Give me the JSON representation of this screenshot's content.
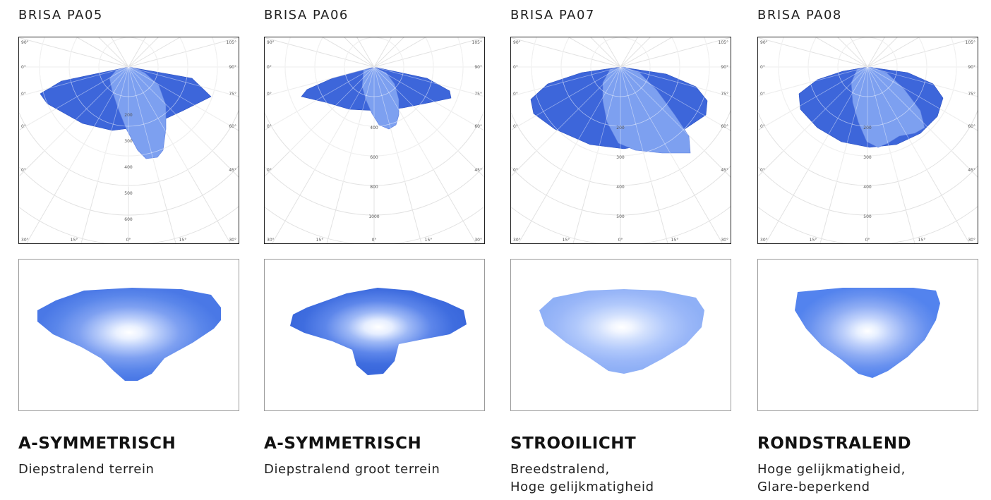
{
  "products": [
    {
      "model": "BRISA PA05",
      "type_title": "A-SYMMETRISCH",
      "description": [
        "Diepstralend terrein"
      ],
      "polar_labels": {
        "corner_left": "90°",
        "corner_right": "105°",
        "right_ticks": [
          "90°",
          "75°",
          "60°",
          "45°"
        ],
        "bottom_ticks": [
          "30°",
          "15°",
          "0°",
          "15°",
          "30°"
        ],
        "radial": [
          "200",
          "300",
          "400",
          "500",
          "600"
        ]
      },
      "colors": {
        "c0": "#3f6fe0",
        "c1": "#5582ea",
        "light": "#7da0f0"
      }
    },
    {
      "model": "BRISA PA06",
      "type_title": "A-SYMMETRISCH",
      "description": [
        "Diepstralend groot terrein"
      ],
      "polar_labels": {
        "corner_left": "90°",
        "corner_right": "105°",
        "right_ticks": [
          "90°",
          "75°",
          "60°",
          "45°"
        ],
        "bottom_ticks": [
          "30°",
          "15°",
          "0°",
          "15°",
          "30°"
        ],
        "radial": [
          "400",
          "600",
          "800",
          "1000"
        ]
      },
      "colors": {
        "c0": "#3b68db",
        "c1": "#4f7ce6",
        "light": "#7da0f0"
      }
    },
    {
      "model": "BRISA PA07",
      "type_title": "STROOILICHT",
      "description": [
        "Breedstralend,",
        "Hoge gelijkmatigheid"
      ],
      "polar_labels": {
        "corner_left": "90°",
        "corner_right": "105°",
        "right_ticks": [
          "90°",
          "75°",
          "60°",
          "45°"
        ],
        "bottom_ticks": [
          "30°",
          "15°",
          "0°",
          "15°",
          "30°"
        ],
        "radial": [
          "200",
          "300",
          "400",
          "500"
        ]
      },
      "colors": {
        "c0": "#8fb0f6",
        "c1": "#a5c0f8",
        "light": "#7da0f0"
      }
    },
    {
      "model": "BRISA PA08",
      "type_title": "RONDSTRALEND",
      "description": [
        "Hoge gelijkmatigheid,",
        "Glare-beperkend"
      ],
      "polar_labels": {
        "corner_left": "90°",
        "corner_right": "105°",
        "right_ticks": [
          "90°",
          "75°",
          "60°",
          "45°"
        ],
        "bottom_ticks": [
          "30°",
          "15°",
          "0°",
          "15°",
          "30°"
        ],
        "radial": [
          "200",
          "300",
          "400",
          "500"
        ]
      },
      "colors": {
        "c0": "#5383ee",
        "c1": "#6b94f1",
        "light": "#7da0f0"
      }
    }
  ]
}
